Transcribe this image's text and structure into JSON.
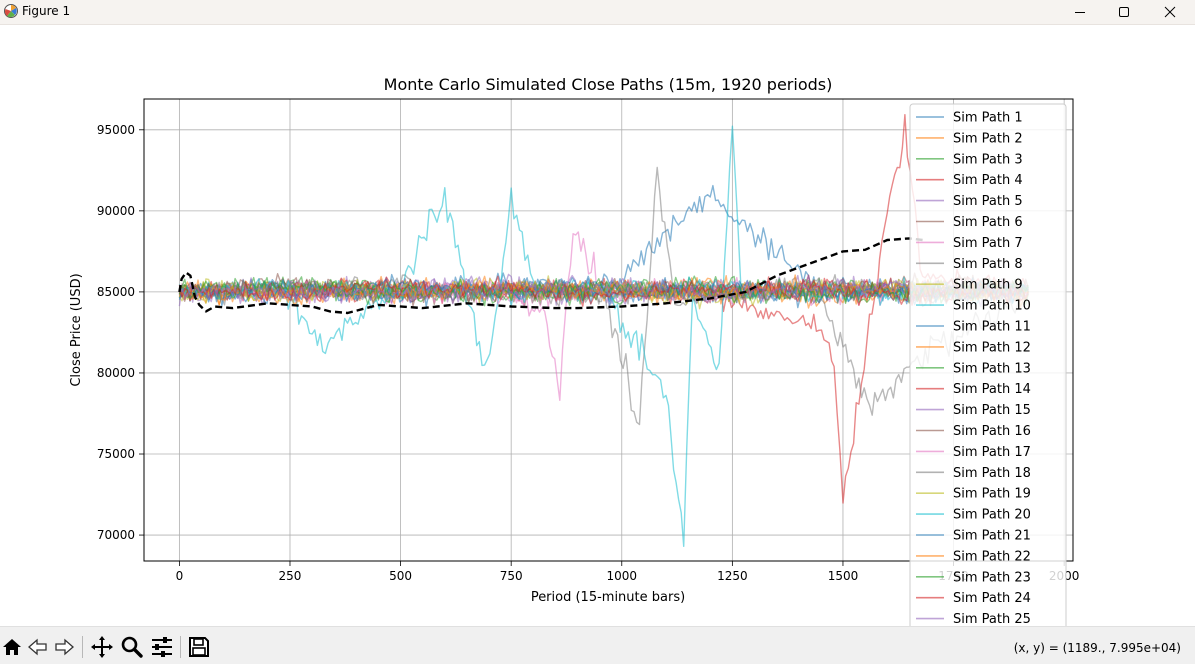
{
  "window": {
    "title": "Figure 1",
    "app_icon": "matplotlib-icon",
    "controls": [
      "minimize-icon",
      "maximize-icon",
      "close-icon"
    ]
  },
  "toolbar": {
    "tools": [
      "home-icon",
      "back-icon",
      "forward-icon",
      "pan-icon",
      "zoom-icon",
      "configure-subplots-icon",
      "save-icon"
    ],
    "coordinates": "(x, y) = (1189., 7.995e+04)"
  },
  "chart_data": {
    "type": "line",
    "title": "Monte Carlo Simulated Close Paths (15m, 1920 periods)",
    "xlabel": "Period (15-minute bars)",
    "ylabel": "Close Price (USD)",
    "xlim": [
      -80,
      2020
    ],
    "ylim": [
      68400,
      96900
    ],
    "xticks": [
      0,
      250,
      500,
      750,
      1000,
      1250,
      1500,
      1750,
      2000
    ],
    "xtick_labels": [
      "0",
      "250",
      "500",
      "750",
      "1000",
      "1250",
      "1500",
      "1750",
      "2000"
    ],
    "yticks": [
      70000,
      75000,
      80000,
      85000,
      90000,
      95000
    ],
    "ytick_labels": [
      "70000",
      "75000",
      "80000",
      "85000",
      "90000",
      "95000"
    ],
    "grid": true,
    "legend_placement": "upper right",
    "start_value": 85000,
    "colors": [
      "#1f77b4",
      "#ff7f0e",
      "#2ca02c",
      "#d62728",
      "#9467bd",
      "#8c564b",
      "#e377c2",
      "#7f7f7f",
      "#bcbd22",
      "#17becf"
    ],
    "series": [
      {
        "name": "Sim Path 1",
        "x": [
          0,
          240,
          480,
          720,
          960,
          1200,
          1440,
          1680,
          1919
        ],
        "values": [
          85000,
          85300,
          84900,
          85600,
          85200,
          91000,
          85400,
          84800,
          85100
        ]
      },
      {
        "name": "Sim Path 2",
        "x": [
          0,
          240,
          480,
          720,
          960,
          1200,
          1440,
          1680,
          1919
        ],
        "values": [
          85000,
          84700,
          85200,
          84900,
          85400,
          85000,
          84600,
          85300,
          85000
        ]
      },
      {
        "name": "Sim Path 3",
        "x": [
          0,
          240,
          480,
          720,
          960,
          1200,
          1440,
          1680,
          1919
        ],
        "values": [
          85000,
          85400,
          85100,
          84600,
          85000,
          85500,
          85200,
          84900,
          85200
        ]
      },
      {
        "name": "Sim Path 4",
        "x": [
          0,
          240,
          480,
          720,
          960,
          1200,
          1440,
          1480,
          1500,
          1560,
          1600,
          1640,
          1680,
          1919
        ],
        "values": [
          85000,
          85200,
          84800,
          85300,
          85100,
          84700,
          83000,
          80500,
          72200,
          82500,
          90000,
          94900,
          86000,
          85400
        ]
      },
      {
        "name": "Sim Path 5",
        "x": [
          0,
          240,
          480,
          720,
          960,
          1200,
          1440,
          1680,
          1919
        ],
        "values": [
          85000,
          84800,
          85500,
          85200,
          84700,
          85100,
          85400,
          85000,
          84800
        ]
      },
      {
        "name": "Sim Path 6",
        "x": [
          0,
          240,
          480,
          720,
          960,
          1200,
          1440,
          1680,
          1919
        ],
        "values": [
          85000,
          85600,
          85000,
          84800,
          85300,
          84900,
          85100,
          85500,
          85200
        ]
      },
      {
        "name": "Sim Path 7",
        "x": [
          0,
          240,
          480,
          720,
          820,
          860,
          890,
          960,
          1200,
          1440,
          1680,
          1919
        ],
        "values": [
          85000,
          85100,
          84700,
          85300,
          84000,
          79000,
          88600,
          85200,
          84800,
          85000,
          85300,
          84900
        ]
      },
      {
        "name": "Sim Path 8",
        "x": [
          0,
          240,
          480,
          720,
          960,
          1040,
          1080,
          1120,
          1200,
          1440,
          1560,
          1680,
          1919
        ],
        "values": [
          85000,
          84900,
          85400,
          85000,
          84600,
          77000,
          92500,
          84000,
          85200,
          85000,
          78000,
          81000,
          85100
        ]
      },
      {
        "name": "Sim Path 9",
        "x": [
          0,
          240,
          480,
          720,
          960,
          1200,
          1440,
          1680,
          1919
        ],
        "values": [
          85000,
          85300,
          85000,
          85400,
          85000,
          84600,
          85200,
          84800,
          85300
        ]
      },
      {
        "name": "Sim Path 10",
        "x": [
          0,
          240,
          330,
          380,
          500,
          600,
          660,
          690,
          720,
          750,
          800,
          960,
          1100,
          1140,
          1160,
          1220,
          1250,
          1270,
          1400,
          1680,
          1919
        ],
        "values": [
          85000,
          84900,
          81500,
          83000,
          85200,
          91200,
          84000,
          79800,
          84500,
          91200,
          85000,
          85300,
          78500,
          69600,
          84500,
          80000,
          95600,
          85000,
          85200,
          84900,
          85000
        ]
      },
      {
        "name": "Sim Path 11",
        "x": [
          0,
          240,
          480,
          720,
          960,
          1200,
          1440,
          1680,
          1919
        ],
        "values": [
          85000,
          85200,
          84800,
          85100,
          85500,
          85000,
          84700,
          85200,
          85000
        ]
      },
      {
        "name": "Sim Path 12",
        "x": [
          0,
          240,
          480,
          720,
          960,
          1200,
          1440,
          1680,
          1919
        ],
        "values": [
          85000,
          84800,
          85300,
          84900,
          85100,
          85400,
          85000,
          84800,
          85200
        ]
      },
      {
        "name": "Sim Path 13",
        "x": [
          0,
          240,
          480,
          720,
          960,
          1200,
          1440,
          1680,
          1919
        ],
        "values": [
          85000,
          85400,
          84900,
          85200,
          84800,
          85100,
          85300,
          85000,
          84900
        ]
      },
      {
        "name": "Sim Path 14",
        "x": [
          0,
          240,
          480,
          720,
          960,
          1200,
          1440,
          1680,
          1919
        ],
        "values": [
          85000,
          85100,
          85400,
          84800,
          85200,
          84900,
          85500,
          85100,
          85000
        ]
      },
      {
        "name": "Sim Path 15",
        "x": [
          0,
          240,
          480,
          720,
          960,
          1200,
          1440,
          1680,
          1919
        ],
        "values": [
          85000,
          84700,
          85100,
          85500,
          85000,
          84800,
          85200,
          84900,
          85300
        ]
      },
      {
        "name": "Sim Path 16",
        "x": [
          0,
          240,
          480,
          720,
          960,
          1200,
          1440,
          1680,
          1919
        ],
        "values": [
          85000,
          85300,
          84800,
          85000,
          85400,
          85200,
          84800,
          85300,
          85100
        ]
      },
      {
        "name": "Sim Path 17",
        "x": [
          0,
          240,
          480,
          720,
          960,
          1200,
          1440,
          1680,
          1919
        ],
        "values": [
          85000,
          85000,
          85300,
          84700,
          85100,
          85400,
          84900,
          85000,
          85200
        ]
      },
      {
        "name": "Sim Path 18",
        "x": [
          0,
          240,
          480,
          720,
          960,
          1200,
          1440,
          1680,
          1919
        ],
        "values": [
          85000,
          85200,
          84900,
          85300,
          84900,
          85000,
          85400,
          84700,
          85000
        ]
      },
      {
        "name": "Sim Path 19",
        "x": [
          0,
          240,
          480,
          720,
          960,
          1200,
          1440,
          1680,
          1919
        ],
        "values": [
          85000,
          84900,
          85200,
          85000,
          85300,
          84800,
          85100,
          85400,
          84900
        ]
      },
      {
        "name": "Sim Path 20",
        "x": [
          0,
          240,
          480,
          720,
          960,
          1200,
          1440,
          1680,
          1919
        ],
        "values": [
          85000,
          85300,
          85000,
          84800,
          85200,
          85300,
          84700,
          85100,
          85300
        ]
      },
      {
        "name": "Sim Path 21",
        "x": [
          0,
          240,
          480,
          720,
          960,
          1200,
          1440,
          1680,
          1919
        ],
        "values": [
          85000,
          84800,
          85400,
          85100,
          84800,
          85200,
          85000,
          84800,
          85100
        ]
      },
      {
        "name": "Sim Path 22",
        "x": [
          0,
          240,
          480,
          720,
          960,
          1200,
          1440,
          1680,
          1919
        ],
        "values": [
          85000,
          85100,
          84900,
          85400,
          85000,
          84900,
          85300,
          85200,
          84800
        ]
      },
      {
        "name": "Sim Path 23",
        "x": [
          0,
          240,
          480,
          720,
          960,
          1200,
          1440,
          1680,
          1919
        ],
        "values": [
          85000,
          85400,
          85100,
          84900,
          85300,
          85100,
          84800,
          85000,
          85400
        ]
      },
      {
        "name": "Sim Path 24",
        "x": [
          0,
          240,
          480,
          720,
          960,
          1200,
          1440,
          1680,
          1919
        ],
        "values": [
          85000,
          84900,
          85300,
          85200,
          84700,
          85300,
          85100,
          84700,
          85000
        ]
      },
      {
        "name": "Sim Path 25",
        "x": [
          0,
          240,
          480,
          720,
          960,
          1200,
          1440,
          1680,
          1919
        ],
        "values": [
          85000,
          85200,
          84800,
          85000,
          85400,
          84800,
          85200,
          85300,
          84900
        ]
      }
    ],
    "actual_path": {
      "x": [
        0,
        5,
        15,
        25,
        35,
        45,
        60,
        80,
        120,
        200,
        300,
        340,
        380,
        450,
        550,
        650,
        750,
        850,
        900,
        1000,
        1100,
        1200,
        1280,
        1350,
        1400,
        1450,
        1500,
        1550,
        1600,
        1650,
        1680
      ],
      "values": [
        85000,
        85800,
        86200,
        86000,
        84700,
        84200,
        83800,
        84100,
        84000,
        84300,
        84100,
        83800,
        83700,
        84200,
        84000,
        84300,
        84100,
        84000,
        84000,
        84100,
        84300,
        84600,
        85000,
        86000,
        86500,
        87000,
        87500,
        87600,
        88200,
        88300,
        88200
      ]
    }
  }
}
